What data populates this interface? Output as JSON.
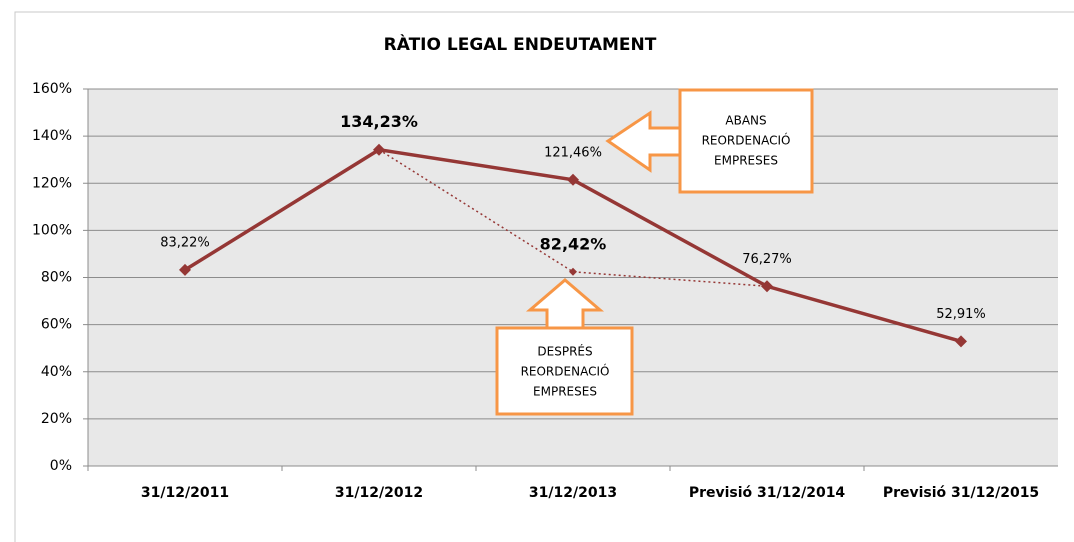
{
  "chart_data": {
    "type": "line",
    "title": "RÀTIO LEGAL ENDEUTAMENT",
    "categories": [
      "31/12/2011",
      "31/12/2012",
      "31/12/2013",
      "Previsió 31/12/2014",
      "Previsió 31/12/2015"
    ],
    "series": [
      {
        "color": "#953735",
        "style": "solid",
        "values": [
          83.22,
          134.23,
          121.46,
          76.27,
          52.91
        ],
        "value_labels": [
          "83,22%",
          "134,23%",
          "121,46%",
          "76,27%",
          "52,91%"
        ]
      },
      {
        "color": "#953735",
        "style": "dotted",
        "values": [
          null,
          134.23,
          82.42,
          76.27,
          null
        ],
        "value_labels": [
          null,
          null,
          "82,42%",
          null,
          null
        ]
      }
    ],
    "ylim": [
      0,
      160
    ],
    "yticks": [
      {
        "value": 0,
        "label": "0%"
      },
      {
        "value": 20,
        "label": "20%"
      },
      {
        "value": 40,
        "label": "40%"
      },
      {
        "value": 60,
        "label": "60%"
      },
      {
        "value": 80,
        "label": "80%"
      },
      {
        "value": 100,
        "label": "100%"
      },
      {
        "value": 120,
        "label": "120%"
      },
      {
        "value": 140,
        "label": "140%"
      },
      {
        "value": 160,
        "label": "160%"
      }
    ],
    "grid": true,
    "annotations": [
      {
        "lines": [
          "ABANS",
          "REORDENACIÓ",
          "EMPRESES"
        ]
      },
      {
        "lines": [
          "DESPRÉS",
          "REORDENACIÓ",
          "EMPRESES"
        ]
      }
    ]
  }
}
